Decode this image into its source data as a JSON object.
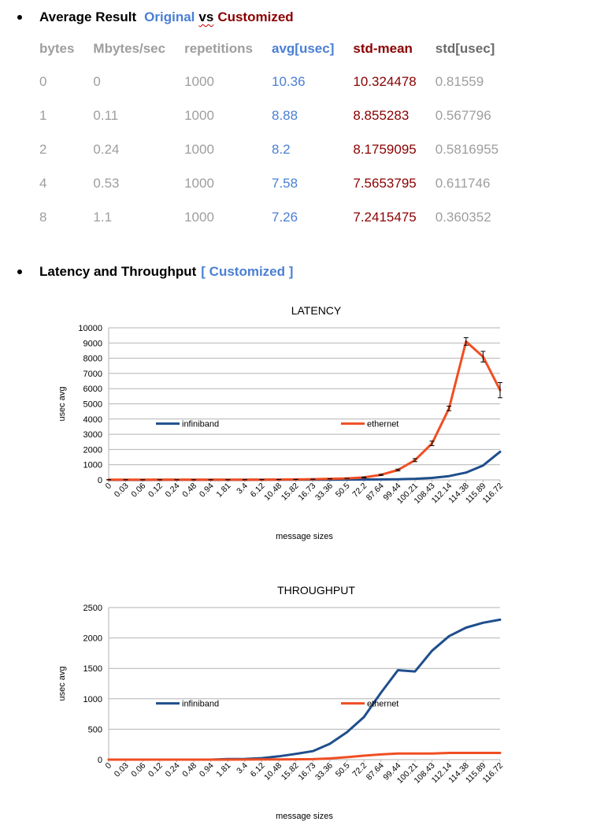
{
  "section1": {
    "heading": "Average Result",
    "label_original": "Original",
    "label_vs": "vs",
    "label_customized": "Customized"
  },
  "table": {
    "headers": [
      "bytes",
      "Mbytes/sec",
      "repetitions",
      "avg[usec]",
      "std-mean",
      "std[usec]"
    ],
    "rows": [
      [
        "0",
        "0",
        "1000",
        "10.36",
        "10.324478",
        "0.81559"
      ],
      [
        "1",
        "0.11",
        "1000",
        "8.88",
        "8.855283",
        "0.567796"
      ],
      [
        "2",
        "0.24",
        "1000",
        "8.2",
        "8.1759095",
        "0.5816955"
      ],
      [
        "4",
        "0.53",
        "1000",
        "7.58",
        "7.5653795",
        "0.611746"
      ],
      [
        "8",
        "1.1",
        "1000",
        "7.26",
        "7.2415475",
        "0.360352"
      ]
    ]
  },
  "section2": {
    "heading": "Latency and Throughput",
    "tag": "[ Customized ]"
  },
  "chart_data": [
    {
      "type": "line",
      "title": "LATENCY",
      "xlabel": "message sizes",
      "ylabel": "usec avg",
      "ylim": [
        0,
        10000
      ],
      "yticks": [
        0,
        1000,
        2000,
        3000,
        4000,
        5000,
        6000,
        7000,
        8000,
        9000,
        10000
      ],
      "grid": true,
      "legend_placement": "inside-middle",
      "categories": [
        "0",
        "0.03",
        "0.06",
        "0.12",
        "0.24",
        "0.48",
        "0.94",
        "1.81",
        "3.4",
        "6.12",
        "10.48",
        "15.82",
        "16.73",
        "33.36",
        "50.5",
        "72.2",
        "87.64",
        "99.44",
        "100.21",
        "108.43",
        "112.14",
        "114.38",
        "115.89",
        "116.72"
      ],
      "series": [
        {
          "name": "infiniband",
          "color": "#1f4e8c",
          "values": [
            2,
            2,
            2,
            3,
            3,
            3,
            4,
            5,
            6,
            8,
            10,
            12,
            14,
            18,
            22,
            26,
            30,
            40,
            70,
            130,
            250,
            480,
            950,
            1850
          ]
        },
        {
          "name": "ethernet",
          "color": "#f04e23",
          "values": [
            10,
            9,
            8,
            8,
            8,
            8,
            9,
            10,
            12,
            15,
            20,
            30,
            45,
            70,
            100,
            160,
            330,
            650,
            1300,
            2400,
            4700,
            9100,
            8100,
            5900
          ],
          "error": [
            0,
            0,
            0,
            0,
            0,
            0,
            0,
            0,
            0,
            0,
            0,
            0,
            0,
            0,
            0,
            30,
            40,
            60,
            100,
            150,
            150,
            250,
            350,
            500
          ]
        }
      ]
    },
    {
      "type": "line",
      "title": "THROUGHPUT",
      "xlabel": "message sizes",
      "ylabel": "usec avg",
      "ylim": [
        0,
        2500
      ],
      "yticks": [
        0,
        500,
        1000,
        1500,
        2000,
        2500
      ],
      "grid": true,
      "legend_placement": "inside-middle",
      "categories": [
        "0",
        "0.03",
        "0.06",
        "0.12",
        "0.24",
        "0.48",
        "0.94",
        "1.81",
        "3.4",
        "6.12",
        "10.48",
        "15.82",
        "16.73",
        "33.36",
        "50.5",
        "72.2",
        "87.64",
        "99.44",
        "100.21",
        "108.43",
        "112.14",
        "114.38",
        "115.89",
        "116.72"
      ],
      "series": [
        {
          "name": "infiniband",
          "color": "#1f4e8c",
          "values": [
            0,
            0,
            0,
            0,
            0,
            0,
            0,
            10,
            12,
            25,
            55,
            95,
            140,
            260,
            450,
            700,
            1100,
            1470,
            1450,
            1790,
            2030,
            2170,
            2250,
            2300
          ]
        },
        {
          "name": "ethernet",
          "color": "#f04e23",
          "values": [
            0,
            0,
            0,
            0,
            0,
            0,
            0,
            0,
            1,
            2,
            3,
            5,
            8,
            20,
            40,
            65,
            85,
            100,
            100,
            100,
            110,
            110,
            110,
            110
          ]
        }
      ]
    }
  ]
}
